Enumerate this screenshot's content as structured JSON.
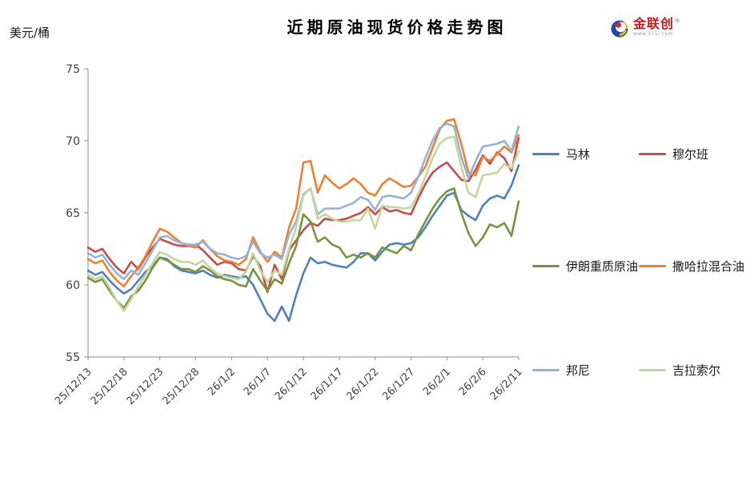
{
  "page": {
    "title": "近期原油现货价格走势图",
    "unit_label": "美元/桶"
  },
  "logo": {
    "name": "金联创",
    "registered": "®",
    "url_text": "www.315i.com",
    "colors": {
      "blue": "#1f4e9c",
      "red": "#d22630",
      "yellow": "#f2b705"
    }
  },
  "chart_data": {
    "type": "line",
    "title": "近期原油现货价格走势图",
    "ylabel": "美元/桶",
    "xlabel": "",
    "ylim": [
      55,
      75
    ],
    "y_ticks": [
      55,
      60,
      65,
      70,
      75
    ],
    "grid": false,
    "legend_position": "right",
    "axis_color": "#8c8c8c",
    "tick_label_color": "#3f3f3f",
    "x_tick_labels": [
      "25/12/13",
      "25/12/18",
      "25/12/23",
      "25/12/28",
      "26/1/2",
      "26/1/7",
      "26/1/12",
      "26/1/17",
      "26/1/22",
      "26/1/27",
      "26/2/1",
      "26/2/6",
      "26/2/11"
    ],
    "points_per_tick": 5,
    "series": [
      {
        "name": "马林",
        "color": "#4F81BD",
        "values": [
          61.0,
          60.7,
          60.9,
          60.3,
          59.8,
          59.4,
          59.7,
          60.3,
          60.9,
          61.3,
          61.9,
          61.8,
          61.3,
          61.0,
          60.9,
          60.8,
          61.0,
          60.7,
          60.5,
          60.7,
          60.6,
          60.5,
          60.6,
          60.0,
          59.0,
          58.0,
          57.5,
          58.5,
          57.5,
          59.3,
          60.8,
          61.9,
          61.5,
          61.6,
          61.4,
          61.3,
          61.2,
          61.6,
          62.2,
          62.2,
          61.7,
          62.3,
          62.8,
          62.9,
          62.8,
          62.9,
          63.3,
          64.0,
          64.8,
          65.5,
          66.2,
          66.4,
          65.2,
          64.8,
          64.5,
          65.5,
          66.0,
          66.2,
          66.0,
          66.9,
          68.3
        ]
      },
      {
        "name": "穆尔班",
        "color": "#C0504D",
        "values": [
          62.6,
          62.3,
          62.5,
          61.8,
          61.2,
          60.8,
          61.6,
          61.1,
          61.9,
          62.6,
          63.2,
          63.0,
          62.8,
          62.7,
          62.7,
          62.8,
          62.4,
          61.9,
          61.4,
          61.6,
          61.5,
          61.1,
          61.0,
          62.0,
          61.3,
          59.5,
          61.4,
          60.4,
          62.4,
          63.1,
          63.8,
          64.3,
          64.1,
          64.6,
          64.5,
          64.5,
          64.6,
          64.8,
          65.0,
          65.4,
          64.9,
          65.4,
          65.1,
          65.2,
          65.0,
          64.9,
          66.0,
          67.0,
          67.8,
          68.2,
          68.5,
          67.9,
          67.3,
          67.2,
          68.0,
          69.0,
          68.4,
          69.2,
          68.8,
          67.9,
          70.2
        ]
      },
      {
        "name": "伊朗重质原油",
        "color": "#77933C",
        "values": [
          60.5,
          60.2,
          60.4,
          59.6,
          58.9,
          58.4,
          59.2,
          59.6,
          60.3,
          61.2,
          61.9,
          61.7,
          61.4,
          61.1,
          61.1,
          60.9,
          61.3,
          61.0,
          60.6,
          60.4,
          60.3,
          60.0,
          59.9,
          61.1,
          60.3,
          59.6,
          60.4,
          60.1,
          61.5,
          62.7,
          64.9,
          64.4,
          63.0,
          63.3,
          62.8,
          62.6,
          61.9,
          62.1,
          61.9,
          62.2,
          61.9,
          62.6,
          62.4,
          62.2,
          62.7,
          62.4,
          63.5,
          64.4,
          65.3,
          66.0,
          66.5,
          66.7,
          65.0,
          63.6,
          62.7,
          63.3,
          64.2,
          64.0,
          64.3,
          63.4,
          65.8
        ]
      },
      {
        "name": "撒哈拉混合油",
        "color": "#ED8031",
        "values": [
          61.8,
          61.5,
          61.7,
          60.9,
          60.3,
          59.9,
          60.6,
          61.2,
          62.0,
          63.0,
          63.9,
          63.7,
          63.3,
          62.9,
          62.7,
          62.6,
          63.1,
          62.5,
          62.0,
          61.7,
          61.6,
          61.4,
          61.8,
          63.3,
          62.3,
          61.6,
          62.3,
          61.9,
          64.0,
          65.3,
          68.5,
          68.6,
          66.4,
          67.6,
          67.1,
          66.7,
          67.0,
          67.4,
          67.0,
          66.4,
          66.2,
          67.0,
          67.4,
          67.1,
          66.8,
          66.9,
          67.5,
          68.2,
          69.5,
          70.8,
          71.4,
          71.5,
          69.8,
          67.8,
          67.6,
          68.9,
          68.6,
          69.1,
          69.6,
          69.2,
          70.4
        ]
      },
      {
        "name": "邦尼",
        "color": "#95B3D7",
        "values": [
          62.2,
          61.9,
          62.1,
          61.4,
          60.8,
          60.4,
          61.0,
          60.7,
          61.5,
          62.4,
          63.3,
          63.4,
          63.1,
          62.9,
          62.8,
          62.8,
          63.0,
          62.5,
          62.2,
          62.1,
          61.9,
          61.8,
          62.0,
          63.0,
          62.2,
          61.9,
          62.1,
          61.8,
          63.5,
          64.4,
          66.3,
          66.7,
          64.9,
          65.3,
          65.3,
          65.3,
          65.5,
          65.7,
          66.1,
          65.9,
          65.2,
          66.1,
          66.2,
          66.1,
          66.0,
          66.4,
          67.5,
          68.8,
          70.0,
          70.9,
          71.2,
          71.0,
          68.9,
          67.4,
          68.6,
          69.6,
          69.7,
          69.8,
          70.0,
          69.3,
          71.0
        ]
      },
      {
        "name": "吉拉索尔",
        "color": "#C3D69B",
        "values": [
          60.7,
          60.4,
          60.6,
          59.8,
          58.9,
          58.2,
          59.0,
          59.9,
          60.7,
          61.5,
          62.3,
          62.1,
          61.8,
          61.6,
          61.6,
          61.4,
          61.7,
          61.2,
          60.8,
          60.6,
          60.5,
          60.4,
          60.9,
          62.2,
          61.0,
          60.2,
          61.0,
          60.7,
          62.5,
          64.0,
          66.2,
          66.7,
          64.6,
          64.9,
          64.6,
          64.4,
          64.4,
          64.5,
          64.5,
          65.3,
          63.9,
          65.5,
          65.4,
          65.4,
          65.3,
          65.4,
          66.3,
          67.5,
          68.8,
          69.8,
          70.2,
          70.3,
          68.2,
          66.4,
          66.1,
          67.6,
          67.7,
          67.8,
          68.4,
          68.1,
          69.3
        ]
      }
    ]
  }
}
